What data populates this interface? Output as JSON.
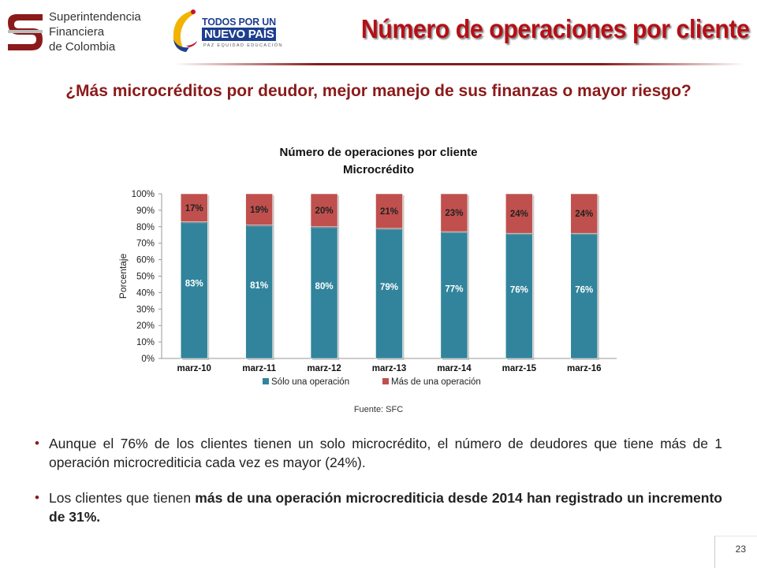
{
  "header": {
    "sfc_logo_lines": [
      "Superintendencia",
      "Financiera",
      "de Colombia"
    ],
    "gov_logo_lines": [
      "TODOS POR UN",
      "NUEVO PAÍS",
      "PAZ  EQUIDAD  EDUCACIÓN"
    ],
    "title": "Número de operaciones por cliente",
    "title_color": "#b50f16"
  },
  "subtitle": "¿Más microcréditos por deudor, mejor manejo de sus finanzas o mayor riesgo?",
  "chart_data": {
    "type": "bar",
    "stacked": true,
    "title_lines": [
      "Número de operaciones por cliente",
      "Microcrédito"
    ],
    "categories": [
      "marz-10",
      "marz-11",
      "marz-12",
      "marz-13",
      "marz-14",
      "marz-15",
      "marz-16"
    ],
    "series": [
      {
        "name": "Sólo una operación",
        "color": "#31849b",
        "values": [
          83,
          81,
          80,
          79,
          77,
          76,
          76
        ]
      },
      {
        "name": "Más de una operación",
        "color": "#c0504d",
        "values": [
          17,
          19,
          20,
          21,
          23,
          24,
          24
        ]
      }
    ],
    "ylabel": "Porcentaje",
    "ylim": [
      0,
      100
    ],
    "yticks": [
      "0%",
      "10%",
      "20%",
      "30%",
      "40%",
      "50%",
      "60%",
      "70%",
      "80%",
      "90%",
      "100%"
    ],
    "value_suffix": "%",
    "legend_position": "bottom"
  },
  "source": "Fuente: SFC",
  "bullets": [
    {
      "parts": [
        {
          "text": "Aunque el 76% de los clientes tienen un solo microcrédito, el número de deudores que tiene más de 1 operación microcrediticia cada vez es mayor (24%).",
          "bold": false
        }
      ]
    },
    {
      "parts": [
        {
          "text": "Los clientes que tienen ",
          "bold": false
        },
        {
          "text": "más de una operación microcrediticia desde 2014 han registrado un incremento de 31%.",
          "bold": true
        }
      ]
    }
  ],
  "page_number": "23"
}
